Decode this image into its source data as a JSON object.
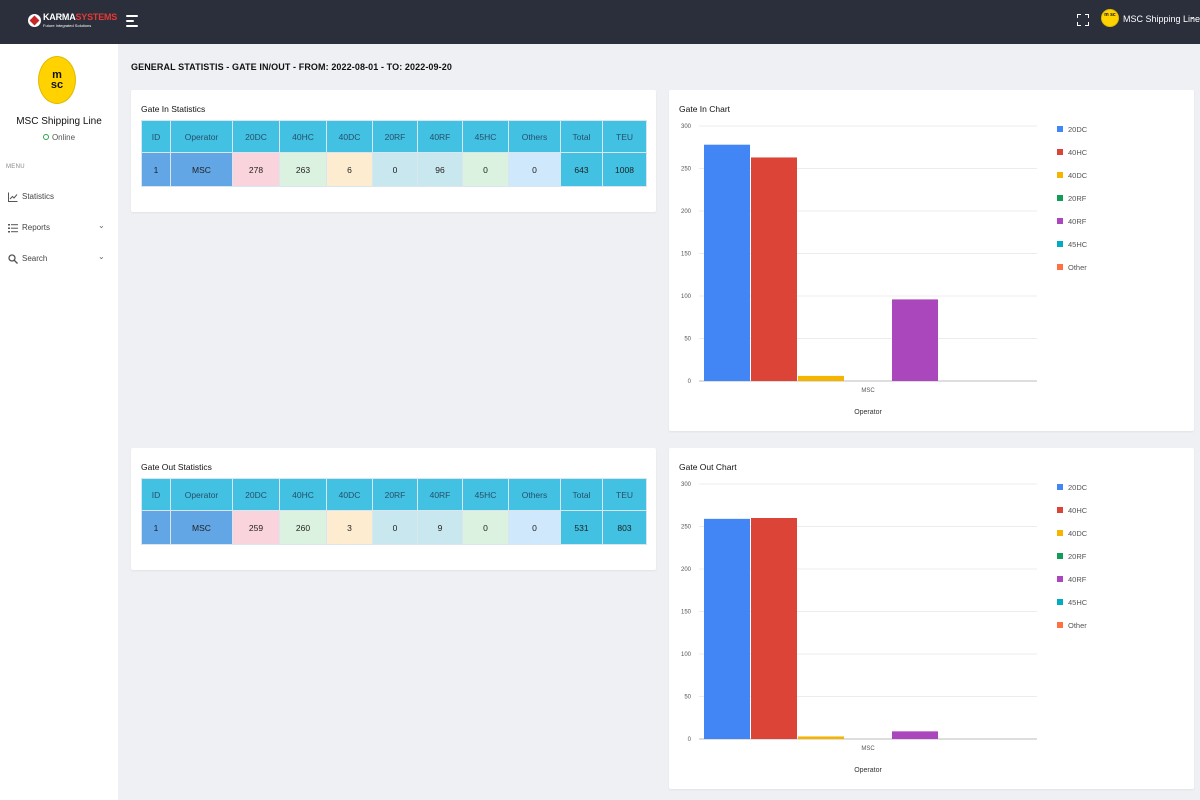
{
  "header": {
    "brand_name_a": "KARMA",
    "brand_name_b": "SYSTEMS",
    "brand_tagline": "Future Integrated Solutions",
    "user_name": "MSC Shipping Line",
    "user_avatar_text": "m sc",
    "user_chevron": "⌄"
  },
  "sidebar": {
    "logo_line1": "m",
    "logo_line2": "sc",
    "account_name": "MSC Shipping Line",
    "status": "Online",
    "menu_header": "MENU",
    "items": [
      {
        "label": "Statistics",
        "icon": "line-chart-icon",
        "has_submenu": false
      },
      {
        "label": "Reports",
        "icon": "list-icon",
        "has_submenu": true
      },
      {
        "label": "Search",
        "icon": "search-icon",
        "has_submenu": true
      }
    ],
    "chevron": "⌄"
  },
  "page_title": "GENERAL STATISTIS - GATE IN/OUT - FROM: 2022-08-01 - TO: 2022-09-20",
  "table_columns": [
    "ID",
    "Operator",
    "20DC",
    "40HC",
    "40DC",
    "20RF",
    "40RF",
    "45HC",
    "Others",
    "Total",
    "TEU"
  ],
  "gate_in_table": {
    "title": "Gate In Statistics",
    "rows": [
      {
        "id": "1",
        "operator": "MSC",
        "c20dc": "278",
        "c40hc": "263",
        "c40dc": "6",
        "c20rf": "0",
        "c40rf": "96",
        "c45hc": "0",
        "others": "0",
        "total": "643",
        "teu": "1008"
      }
    ]
  },
  "gate_out_table": {
    "title": "Gate Out Statistics",
    "rows": [
      {
        "id": "1",
        "operator": "MSC",
        "c20dc": "259",
        "c40hc": "260",
        "c40dc": "3",
        "c20rf": "0",
        "c40rf": "9",
        "c45hc": "0",
        "others": "0",
        "total": "531",
        "teu": "803"
      }
    ]
  },
  "colors": {
    "topbar": "#2a2f3b",
    "accent_cyan": "#42c1e2",
    "brand_yellow": "#ffd200"
  },
  "chart_data": [
    {
      "type": "bar",
      "title": "Gate In Chart",
      "categories": [
        "MSC"
      ],
      "xlabel": "Operator",
      "ylabel": "",
      "ylim": [
        0,
        300
      ],
      "yticks": [
        0,
        50,
        100,
        150,
        200,
        250,
        300
      ],
      "grid": true,
      "legend_position": "right",
      "series": [
        {
          "name": "20DC",
          "values": [
            278
          ],
          "color": "#4285f4"
        },
        {
          "name": "40HC",
          "values": [
            263
          ],
          "color": "#db4437"
        },
        {
          "name": "40DC",
          "values": [
            6
          ],
          "color": "#f4b400"
        },
        {
          "name": "20RF",
          "values": [
            0
          ],
          "color": "#0f9d58"
        },
        {
          "name": "40RF",
          "values": [
            96
          ],
          "color": "#ab47bc"
        },
        {
          "name": "45HC",
          "values": [
            0
          ],
          "color": "#00acc1"
        },
        {
          "name": "Other",
          "values": [
            0
          ],
          "color": "#ff7043"
        }
      ]
    },
    {
      "type": "bar",
      "title": "Gate Out Chart",
      "categories": [
        "MSC"
      ],
      "xlabel": "Operator",
      "ylabel": "",
      "ylim": [
        0,
        300
      ],
      "yticks": [
        0,
        50,
        100,
        150,
        200,
        250,
        300
      ],
      "grid": true,
      "legend_position": "right",
      "series": [
        {
          "name": "20DC",
          "values": [
            259
          ],
          "color": "#4285f4"
        },
        {
          "name": "40HC",
          "values": [
            260
          ],
          "color": "#db4437"
        },
        {
          "name": "40DC",
          "values": [
            3
          ],
          "color": "#f4b400"
        },
        {
          "name": "20RF",
          "values": [
            0
          ],
          "color": "#0f9d58"
        },
        {
          "name": "40RF",
          "values": [
            9
          ],
          "color": "#ab47bc"
        },
        {
          "name": "45HC",
          "values": [
            0
          ],
          "color": "#00acc1"
        },
        {
          "name": "Other",
          "values": [
            0
          ],
          "color": "#ff7043"
        }
      ]
    }
  ]
}
